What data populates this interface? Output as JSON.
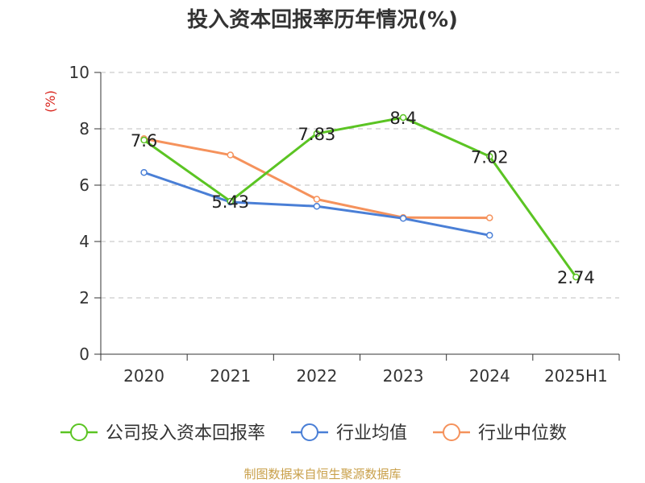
{
  "chart_data": {
    "type": "line",
    "title": "投入资本回报率历年情况(%)",
    "ylabel": "(%)",
    "categories": [
      "2020",
      "2021",
      "2022",
      "2023",
      "2024",
      "2025H1"
    ],
    "ylim": [
      0,
      10
    ],
    "yticks": [
      0,
      2,
      4,
      6,
      8,
      10
    ],
    "grid": true,
    "legend_position": "bottom",
    "series": [
      {
        "name": "公司投入资本回报率",
        "color": "#5bc423",
        "values": [
          7.6,
          5.43,
          7.83,
          8.4,
          7.02,
          2.74
        ],
        "labels": [
          "7.6",
          "5.43",
          "7.83",
          "8.4",
          "7.02",
          "2.74"
        ]
      },
      {
        "name": "行业均值",
        "color": "#4a7fd6",
        "values": [
          6.45,
          5.4,
          5.25,
          4.82,
          4.22,
          null
        ]
      },
      {
        "name": "行业中位数",
        "color": "#f5925c",
        "values": [
          7.65,
          7.07,
          5.5,
          4.85,
          4.84,
          null
        ]
      }
    ],
    "source": "制图数据来自恒生聚源数据库"
  }
}
